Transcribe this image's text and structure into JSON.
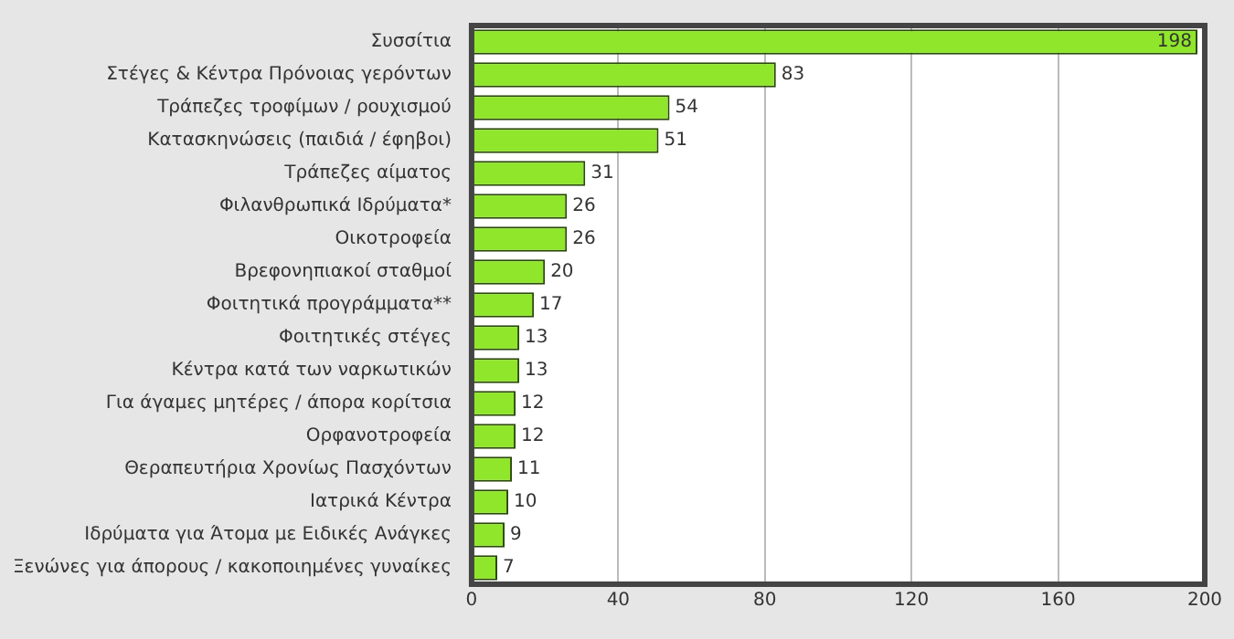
{
  "chart_data": {
    "type": "bar",
    "orientation": "horizontal",
    "categories": [
      "Συσσίτια",
      "Στέγες & Κέντρα Πρόνοιας γερόντων",
      "Τράπεζες τροφίμων / ρουχισμού",
      "Κατασκηνώσεις (παιδιά / έφηβοι)",
      "Τράπεζες αίματος",
      "Φιλανθρωπικά Ιδρύματα*",
      "Οικοτροφεία",
      "Βρεφονηπιακοί σταθμοί",
      "Φοιτητικά προγράμματα**",
      "Φοιτητικές στέγες",
      "Κέντρα κατά των ναρκωτικών",
      "Για άγαμες μητέρες / άπορα κορίτσια",
      "Ορφανοτροφεία",
      "Θεραπευτήρια Χρονίως Πασχόντων",
      "Ιατρικά Κέντρα",
      "Ιδρύματα για Άτομα με Ειδικές Ανάγκες",
      "Ξενώνες για άπορους / κακοποιημένες γυναίκες"
    ],
    "values": [
      198,
      83,
      54,
      51,
      31,
      26,
      26,
      20,
      17,
      13,
      13,
      12,
      12,
      11,
      10,
      9,
      7
    ],
    "color": "#8fe62a",
    "xlim": [
      0,
      200
    ],
    "xticks": [
      0,
      40,
      80,
      120,
      160,
      200
    ],
    "grid": "x",
    "data_labels": true
  }
}
